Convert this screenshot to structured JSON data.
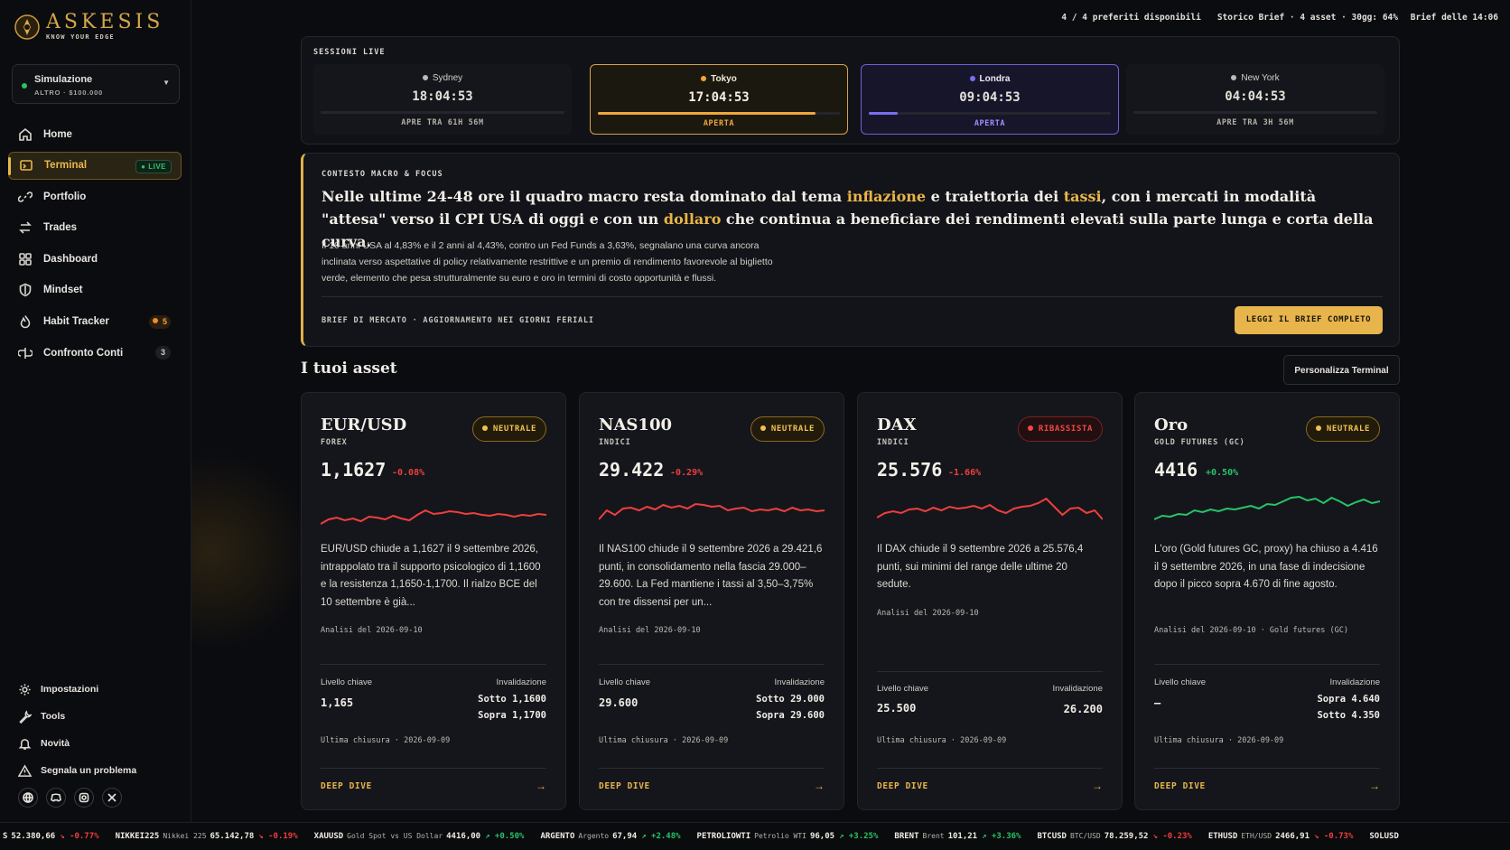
{
  "brand": {
    "name": "ASKESIS",
    "tagline": "KNOW YOUR EDGE"
  },
  "account": {
    "name": "Simulazione",
    "sub": "ALTRO · $100.000"
  },
  "nav": [
    {
      "label": "Home",
      "icon": "home-icon"
    },
    {
      "label": "Terminal",
      "icon": "terminal-icon",
      "badge": "LIVE",
      "active": true
    },
    {
      "label": "Portfolio",
      "icon": "link-icon"
    },
    {
      "label": "Trades",
      "icon": "swap-icon"
    },
    {
      "label": "Dashboard",
      "icon": "dashboard-icon"
    },
    {
      "label": "Mindset",
      "icon": "shield-icon"
    },
    {
      "label": "Habit Tracker",
      "icon": "flame-icon",
      "count": "5"
    },
    {
      "label": "Confronto Conti",
      "icon": "compare-icon",
      "count": "3"
    }
  ],
  "bottom_nav": [
    {
      "label": "Impostazioni",
      "icon": "gear-icon"
    },
    {
      "label": "Tools",
      "icon": "wrench-icon"
    },
    {
      "label": "Novità",
      "icon": "bell-icon"
    },
    {
      "label": "Segnala un problema",
      "icon": "warning-icon"
    }
  ],
  "status": {
    "favorites": "4 / 4 preferiti disponibili",
    "history": "Storico Brief · 4 asset · 30gg: 64%",
    "brief_time": "Brief delle 14:06"
  },
  "sessions": {
    "title": "SESSIONI LIVE",
    "items": [
      {
        "city": "Sydney",
        "time": "18:04:53",
        "status": "APRE TRA 61H 56M",
        "progress": 0
      },
      {
        "city": "Tokyo",
        "time": "17:04:53",
        "status": "APERTA",
        "progress": 0.9
      },
      {
        "city": "Londra",
        "time": "09:04:53",
        "status": "APERTA",
        "progress": 0.12
      },
      {
        "city": "New York",
        "time": "04:04:53",
        "status": "APRE TRA 3H 56M",
        "progress": 0
      }
    ]
  },
  "macro": {
    "kicker": "CONTESTO MACRO & FOCUS",
    "h1": "Nelle ultime 24-48 ore il quadro macro resta dominato dal tema ",
    "h_hl1": "inflazione",
    "h2": " e traiettoria dei ",
    "h_hl2": "tassi",
    "h3": ", con i mercati in modalità \"attesa\" verso il CPI USA di oggi e con un ",
    "h_hl3": "dollaro",
    "h4": " che continua a beneficiare dei rendimenti elevati sulla parte lunga e corta della curva.",
    "body": "Il 10 anni USA al 4,83% e il 2 anni al 4,43%, contro un Fed Funds a 3,63%, segnalano una curva ancora inclinata verso aspettative di policy relativamente restrittive e un premio di rendimento favorevole al biglietto verde, elemento che pesa strutturalmente su euro e oro in termini di costo opportunità e flussi.",
    "footer": "BRIEF DI MERCATO · AGGIORNAMENTO NEI GIORNI FERIALI",
    "cta": "LEGGI IL BRIEF COMPLETO"
  },
  "assets_title": "I tuoi asset",
  "customize_label": "Personalizza Terminal",
  "labels": {
    "key_level": "Livello chiave",
    "invalidation": "Invalidazione",
    "deep_dive": "DEEP DIVE"
  },
  "assets": [
    {
      "name": "EUR/USD",
      "category": "FOREX",
      "bias": "NEUTRALE",
      "price": "1,1627",
      "change": "-0.08%",
      "desc": "EUR/USD chiude a 1,1627 il 9 settembre 2026, intrappolato tra il supporto psicologico di 1,1600 e la resistenza 1,1650-1,1700. Il rialzo BCE del 10 settembre è già...",
      "analysis": "Analisi del 2026-09-10",
      "key": "1,165",
      "inv1": "Sotto 1,1600",
      "inv2": "Sopra 1,1700",
      "close": "Ultima chiusura · 2026-09-09"
    },
    {
      "name": "NAS100",
      "category": "INDICI",
      "bias": "NEUTRALE",
      "price": "29.422",
      "change": "-0.29%",
      "desc": "Il NAS100 chiude il 9 settembre 2026 a 29.421,6 punti, in consolidamento nella fascia 29.000–29.600. La Fed mantiene i tassi al 3,50–3,75% con tre dissensi per un...",
      "analysis": "Analisi del 2026-09-10",
      "key": "29.600",
      "inv1": "Sotto 29.000",
      "inv2": "Sopra 29.600",
      "close": "Ultima chiusura · 2026-09-09"
    },
    {
      "name": "DAX",
      "category": "INDICI",
      "bias": "RIBASSISTA",
      "price": "25.576",
      "change": "-1.66%",
      "desc": "Il DAX chiude il 9 settembre 2026 a 25.576,4 punti, sui minimi del range delle ultime 20 sedute.",
      "analysis": "Analisi del 2026-09-10",
      "key": "25.500",
      "inv1": "26.200",
      "inv2": "",
      "close": "Ultima chiusura · 2026-09-09"
    },
    {
      "name": "Oro",
      "category": "GOLD FUTURES (GC)",
      "bias": "NEUTRALE",
      "price": "4416",
      "change": "+0.50%",
      "desc": "L'oro (Gold futures GC, proxy) ha chiuso a 4.416 il 9 settembre 2026, in una fase di indecisione dopo il picco sopra 4.670 di fine agosto.",
      "analysis": "Analisi del 2026-09-10 · Gold futures (GC)",
      "key": "–",
      "inv1": "Sopra 4.640",
      "inv2": "Sotto 4.350",
      "close": "Ultima chiusura · 2026-09-09"
    }
  ],
  "sparklines": [
    [
      45,
      40,
      38,
      41,
      39,
      42,
      37,
      38,
      40,
      36,
      39,
      41,
      35,
      30,
      34,
      33,
      31,
      32,
      34,
      33,
      35,
      36,
      34,
      35,
      37,
      35,
      36,
      34,
      35
    ],
    [
      40,
      30,
      35,
      28,
      27,
      30,
      26,
      29,
      24,
      27,
      25,
      28,
      23,
      24,
      26,
      25,
      30,
      28,
      27,
      31,
      29,
      30,
      28,
      31,
      27,
      30,
      29,
      31,
      30
    ],
    [
      38,
      33,
      31,
      33,
      29,
      28,
      31,
      27,
      30,
      26,
      28,
      27,
      25,
      28,
      24,
      30,
      33,
      28,
      26,
      25,
      22,
      17,
      26,
      35,
      28,
      27,
      33,
      30,
      40
    ],
    [
      40,
      36,
      37,
      34,
      35,
      30,
      32,
      29,
      31,
      28,
      29,
      27,
      25,
      28,
      23,
      24,
      20,
      16,
      15,
      19,
      17,
      22,
      16,
      20,
      25,
      21,
      18,
      22,
      20
    ]
  ],
  "ticker": [
    {
      "sym": "S",
      "desc": "",
      "val": "52.380,66",
      "chg": "↘ -0.77%",
      "dir": "neg"
    },
    {
      "sym": "NIKKEI225",
      "desc": "Nikkei 225",
      "val": "65.142,78",
      "chg": "↘ -0.19%",
      "dir": "neg"
    },
    {
      "sym": "XAUUSD",
      "desc": "Gold Spot vs US Dollar",
      "val": "4416,00",
      "chg": "↗ +0.50%",
      "dir": "pos"
    },
    {
      "sym": "ARGENTO",
      "desc": "Argento",
      "val": "67,94",
      "chg": "↗ +2.48%",
      "dir": "pos"
    },
    {
      "sym": "PETROLIOWTI",
      "desc": "Petrolio WTI",
      "val": "96,05",
      "chg": "↗ +3.25%",
      "dir": "pos"
    },
    {
      "sym": "BRENT",
      "desc": "Brent",
      "val": "101,21",
      "chg": "↗ +3.36%",
      "dir": "pos"
    },
    {
      "sym": "BTCUSD",
      "desc": "BTC/USD",
      "val": "78.259,52",
      "chg": "↘ -0.23%",
      "dir": "neg"
    },
    {
      "sym": "ETHUSD",
      "desc": "ETH/USD",
      "val": "2466,91",
      "chg": "↘ -0.73%",
      "dir": "neg"
    },
    {
      "sym": "SOLUSD",
      "desc": "",
      "val": "",
      "chg": "",
      "dir": "neg"
    }
  ]
}
